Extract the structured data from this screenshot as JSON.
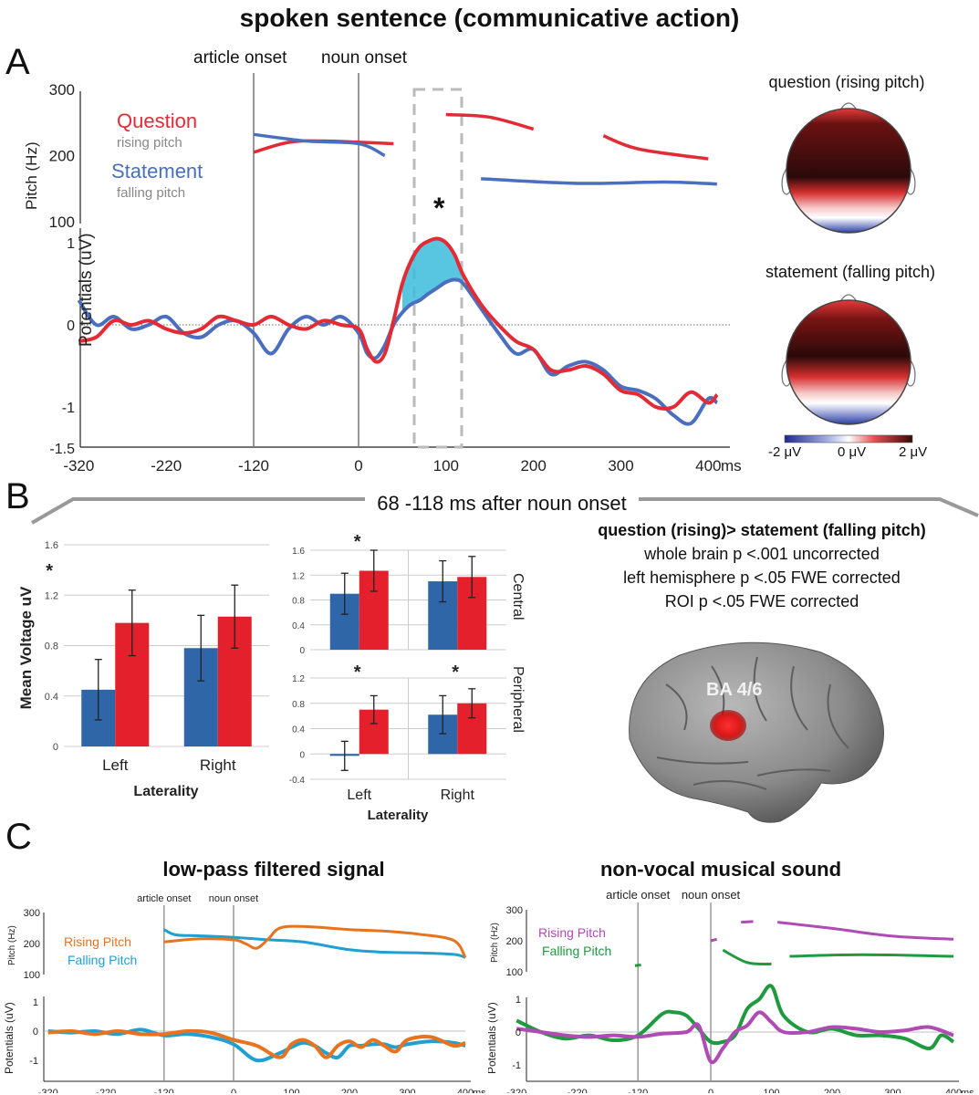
{
  "title": "spoken sentence (communicative action)",
  "panel_labels": {
    "a": "A",
    "b": "B",
    "c": "C"
  },
  "colors": {
    "question": "#e22b35",
    "statement": "#4a6fbf",
    "fill": "#3bbcdc",
    "bar_blue": "#2e66a8",
    "bar_red": "#e3202c",
    "orange": "#e8731f",
    "cyan": "#1fa0d0",
    "purple": "#b04ab5",
    "green": "#1f9a3f"
  },
  "panel_a": {
    "onsets": {
      "article": "article onset",
      "noun": "noun onset"
    },
    "significance": "*",
    "pitch_legend": {
      "question": "Question",
      "question_sub": "rising pitch",
      "statement": "Statement",
      "statement_sub": "falling pitch"
    },
    "topo": {
      "question_title": "question (rising pitch)",
      "statement_title": "statement (falling pitch)",
      "scale_min": "-2 μV",
      "scale_mid": "0 μV",
      "scale_max": "2 μV"
    },
    "chart_data": {
      "type": "line",
      "title": "spoken sentence (communicative action)",
      "xlabel": "ms",
      "x_ticks": [
        "-320",
        "-220",
        "-120",
        "0",
        "100",
        "200",
        "300",
        "400"
      ],
      "pitch_axis": {
        "ylabel": "Pitch (Hz)",
        "ticks": [
          "100",
          "200",
          "300"
        ],
        "ylim": [
          100,
          300
        ]
      },
      "potential_axis": {
        "ylabel": "Potentials (uV)",
        "ticks": [
          "1",
          "0",
          "-1",
          "-1.5"
        ],
        "ylim": [
          -1.5,
          1.2
        ]
      },
      "window_ms": [
        68,
        118
      ],
      "series": [
        {
          "name": "Question (rising pitch) ERP",
          "x": [
            -320,
            -300,
            -280,
            -260,
            -240,
            -220,
            -200,
            -180,
            -160,
            -140,
            -120,
            -100,
            -80,
            -60,
            -40,
            -20,
            0,
            10,
            20,
            30,
            40,
            50,
            60,
            70,
            80,
            90,
            100,
            110,
            120,
            140,
            160,
            180,
            200,
            220,
            240,
            260,
            280,
            300,
            320,
            340,
            360,
            380,
            400,
            410
          ],
          "values": [
            -0.2,
            -0.15,
            0.05,
            0.0,
            0.05,
            -0.05,
            -0.1,
            -0.05,
            0.1,
            0.05,
            0.0,
            0.1,
            0.0,
            -0.05,
            0.05,
            0.0,
            -0.05,
            -0.3,
            -0.45,
            -0.35,
            0.05,
            0.5,
            0.78,
            0.95,
            1.02,
            1.05,
            1.0,
            0.85,
            0.6,
            0.25,
            0.0,
            -0.2,
            -0.3,
            -0.55,
            -0.55,
            -0.5,
            -0.6,
            -0.8,
            -0.85,
            -1.0,
            -1.0,
            -0.82,
            -0.95,
            -0.85
          ]
        },
        {
          "name": "Statement (falling pitch) ERP",
          "x": [
            -320,
            -300,
            -280,
            -260,
            -240,
            -220,
            -200,
            -180,
            -160,
            -140,
            -120,
            -100,
            -80,
            -60,
            -40,
            -20,
            0,
            10,
            20,
            30,
            40,
            50,
            60,
            70,
            80,
            90,
            100,
            110,
            120,
            140,
            160,
            180,
            200,
            220,
            240,
            260,
            280,
            300,
            320,
            340,
            360,
            380,
            400,
            410
          ],
          "values": [
            0.3,
            0.0,
            0.1,
            -0.05,
            0.0,
            0.1,
            -0.1,
            -0.15,
            0.0,
            0.05,
            -0.1,
            -0.35,
            -0.05,
            0.1,
            0.0,
            0.1,
            -0.1,
            -0.35,
            -0.4,
            -0.25,
            0.0,
            0.15,
            0.25,
            0.3,
            0.38,
            0.45,
            0.52,
            0.55,
            0.5,
            0.2,
            -0.1,
            -0.35,
            -0.3,
            -0.6,
            -0.5,
            -0.45,
            -0.55,
            -0.75,
            -0.8,
            -0.9,
            -1.1,
            -1.2,
            -0.9,
            -0.95
          ]
        },
        {
          "name": "Question pitch (Hz)",
          "segments": [
            [
              [
                -120,
                205
              ],
              [
                -80,
                220
              ],
              [
                -40,
                222
              ],
              [
                40,
                218
              ]
            ],
            [
              [
                100,
                262
              ],
              [
                150,
                258
              ],
              [
                200,
                240
              ]
            ],
            [
              [
                280,
                230
              ],
              [
                320,
                210
              ],
              [
                400,
                195
              ]
            ]
          ]
        },
        {
          "name": "Statement pitch (Hz)",
          "segments": [
            [
              [
                -120,
                232
              ],
              [
                -60,
                222
              ],
              [
                0,
                218
              ],
              [
                30,
                200
              ]
            ],
            [
              [
                140,
                165
              ],
              [
                250,
                158
              ],
              [
                350,
                160
              ],
              [
                410,
                157
              ]
            ]
          ]
        }
      ]
    }
  },
  "panel_b": {
    "window_label": "68 -118 ms after noun onset",
    "chart_data": [
      {
        "type": "bar",
        "ylabel": "Mean Voltage uV",
        "xlabel": "Laterality",
        "categories": [
          "Left",
          "Right"
        ],
        "y_ticks": [
          "0",
          "0.4",
          "0.8",
          "1.2",
          "1.6"
        ],
        "ylim": [
          0,
          1.6
        ],
        "series": [
          {
            "name": "statement (falling pitch)",
            "values": [
              0.45,
              0.78
            ],
            "errors": [
              0.24,
              0.26
            ]
          },
          {
            "name": "question (rising pitch)",
            "values": [
              0.98,
              1.03
            ],
            "errors": [
              0.26,
              0.25
            ]
          }
        ],
        "significance": [
          "*",
          ""
        ]
      },
      {
        "type": "bar",
        "region": "Central",
        "categories": [
          "Left",
          "Right"
        ],
        "y_ticks": [
          "0",
          "0.4",
          "0.8",
          "1.2",
          "1.6"
        ],
        "ylim": [
          0,
          1.6
        ],
        "series": [
          {
            "name": "statement (falling pitch)",
            "values": [
              0.9,
              1.1
            ],
            "errors": [
              0.33,
              0.33
            ]
          },
          {
            "name": "question (rising pitch)",
            "values": [
              1.27,
              1.17
            ],
            "errors": [
              0.33,
              0.33
            ]
          }
        ],
        "significance": [
          "*",
          ""
        ]
      },
      {
        "type": "bar",
        "region": "Peripheral",
        "xlabel": "Laterality",
        "categories": [
          "Left",
          "Right"
        ],
        "y_ticks": [
          "-0.4",
          "0",
          "0.4",
          "0.8",
          "1.2"
        ],
        "ylim": [
          -0.4,
          1.2
        ],
        "series": [
          {
            "name": "statement (falling pitch)",
            "values": [
              -0.03,
              0.62
            ],
            "errors": [
              0.23,
              0.3
            ]
          },
          {
            "name": "question (rising pitch)",
            "values": [
              0.7,
              0.8
            ],
            "errors": [
              0.22,
              0.23
            ]
          }
        ],
        "significance": [
          "*",
          "*"
        ]
      }
    ],
    "stats": {
      "heading": "question (rising)> statement (falling pitch)",
      "line1": "whole brain p <.001 uncorrected",
      "line2": "left hemisphere p <.05 FWE corrected",
      "line3": "ROI p <.05 FWE corrected"
    },
    "brain_label": "BA 4/6"
  },
  "panel_c": {
    "chart_data": [
      {
        "type": "line",
        "title": "low-pass filtered signal",
        "xlabel": "ms",
        "onsets": {
          "article": "article onset",
          "noun": "noun onset"
        },
        "x_ticks": [
          "-320",
          "-220",
          "-120",
          "0",
          "100",
          "200",
          "300",
          "400"
        ],
        "pitch_axis": {
          "ylabel": "Pitch (Hz)",
          "ticks": [
            "100",
            "200",
            "300"
          ]
        },
        "potential_axis": {
          "ylabel": "Potentials (uV)",
          "ticks": [
            "1",
            "0",
            "-1"
          ]
        },
        "legend": [
          "Rising Pitch",
          "Falling Pitch"
        ],
        "series": [
          {
            "name": "Rising Pitch ERP",
            "x": [
              -320,
              -280,
              -240,
              -200,
              -160,
              -120,
              -80,
              -40,
              0,
              40,
              80,
              100,
              120,
              140,
              160,
              180,
              200,
              220,
              240,
              260,
              280,
              300,
              340,
              380,
              400
            ],
            "values": [
              -0.05,
              0.0,
              -0.1,
              0.0,
              -0.1,
              -0.1,
              0.0,
              -0.05,
              -0.3,
              -0.5,
              -0.9,
              -0.45,
              -0.3,
              -0.5,
              -0.9,
              -0.5,
              -0.35,
              -0.55,
              -0.3,
              -0.5,
              -0.7,
              -0.3,
              -0.2,
              -0.5,
              -0.4
            ]
          },
          {
            "name": "Falling Pitch ERP",
            "x": [
              -320,
              -280,
              -240,
              -200,
              -160,
              -120,
              -80,
              -40,
              0,
              40,
              80,
              100,
              120,
              140,
              160,
              180,
              200,
              220,
              240,
              260,
              280,
              300,
              340,
              380,
              400
            ],
            "values": [
              0.0,
              -0.05,
              0.0,
              -0.1,
              0.05,
              -0.15,
              -0.1,
              -0.2,
              -0.45,
              -1.0,
              -0.75,
              -0.55,
              -0.4,
              -0.5,
              -0.75,
              -0.9,
              -0.5,
              -0.5,
              -0.45,
              -0.45,
              -0.55,
              -0.45,
              -0.35,
              -0.4,
              -0.5
            ]
          },
          {
            "name": "Rising Pitch (Hz)",
            "x": [
              -120,
              -60,
              0,
              20,
              40,
              60,
              80,
              120,
              200,
              260,
              320,
              380,
              400
            ],
            "values": [
              205,
              215,
              212,
              200,
              185,
              215,
              250,
              255,
              245,
              240,
              230,
              210,
              155
            ]
          },
          {
            "name": "Falling Pitch (Hz)",
            "x": [
              -120,
              -100,
              -60,
              0,
              60,
              120,
              200,
              260,
              320,
              380,
              400
            ],
            "values": [
              245,
              228,
              225,
              220,
              212,
              205,
              180,
              172,
              170,
              165,
              155
            ]
          }
        ]
      },
      {
        "type": "line",
        "title": "non-vocal musical sound",
        "xlabel": "ms",
        "onsets": {
          "article": "article onset",
          "noun": "noun onset"
        },
        "x_ticks": [
          "-320",
          "-220",
          "-120",
          "0",
          "100",
          "200",
          "300",
          "400"
        ],
        "pitch_axis": {
          "ylabel": "Pitch (Hz)",
          "ticks": [
            "100",
            "200",
            "300"
          ]
        },
        "potential_axis": {
          "ylabel": "Potentials (uV)",
          "ticks": [
            "1",
            "0",
            "-1"
          ]
        },
        "legend": [
          "Rising Pitch",
          "Falling Pitch"
        ],
        "series": [
          {
            "name": "Rising Pitch ERP",
            "x": [
              -320,
              -280,
              -240,
              -200,
              -160,
              -120,
              -80,
              -40,
              -20,
              0,
              20,
              40,
              60,
              80,
              100,
              120,
              160,
              200,
              240,
              280,
              320,
              360,
              400
            ],
            "values": [
              0.1,
              0.0,
              -0.1,
              -0.15,
              -0.1,
              -0.15,
              -0.05,
              0.0,
              0.2,
              -0.9,
              -0.5,
              0.0,
              0.2,
              0.6,
              0.3,
              0.0,
              0.0,
              0.15,
              0.1,
              0.0,
              0.05,
              0.15,
              -0.1
            ]
          },
          {
            "name": "Falling Pitch ERP",
            "x": [
              -320,
              -280,
              -240,
              -200,
              -160,
              -120,
              -80,
              -60,
              -40,
              -20,
              0,
              20,
              40,
              60,
              80,
              100,
              120,
              160,
              200,
              240,
              280,
              320,
              360,
              380,
              400
            ],
            "values": [
              0.35,
              0.0,
              -0.2,
              -0.1,
              -0.25,
              -0.1,
              0.55,
              0.6,
              0.5,
              0.1,
              -0.3,
              -0.3,
              -0.1,
              0.7,
              1.0,
              1.4,
              0.5,
              0.0,
              0.1,
              -0.1,
              -0.1,
              -0.2,
              -0.5,
              -0.1,
              -0.3
            ]
          },
          {
            "name": "Rising Pitch (Hz)",
            "segments": [
              [
                [
                  0,
                  200
                ],
                [
                  10,
                  205
                ]
              ],
              [
                [
                  50,
                  260
                ],
                [
                  70,
                  262
                ]
              ],
              [
                [
                  110,
                  260
                ],
                [
                  200,
                  240
                ],
                [
                  300,
                  215
                ],
                [
                  400,
                  205
                ]
              ]
            ]
          },
          {
            "name": "Falling Pitch (Hz)",
            "segments": [
              [
                [
                  -125,
                  120
                ],
                [
                  -115,
                  122
                ]
              ],
              [
                [
                  20,
                  170
                ],
                [
                  60,
                  130
                ],
                [
                  100,
                  125
                ]
              ],
              [
                [
                  130,
                  150
                ],
                [
                  250,
                  155
                ],
                [
                  400,
                  150
                ]
              ]
            ]
          }
        ]
      }
    ]
  }
}
